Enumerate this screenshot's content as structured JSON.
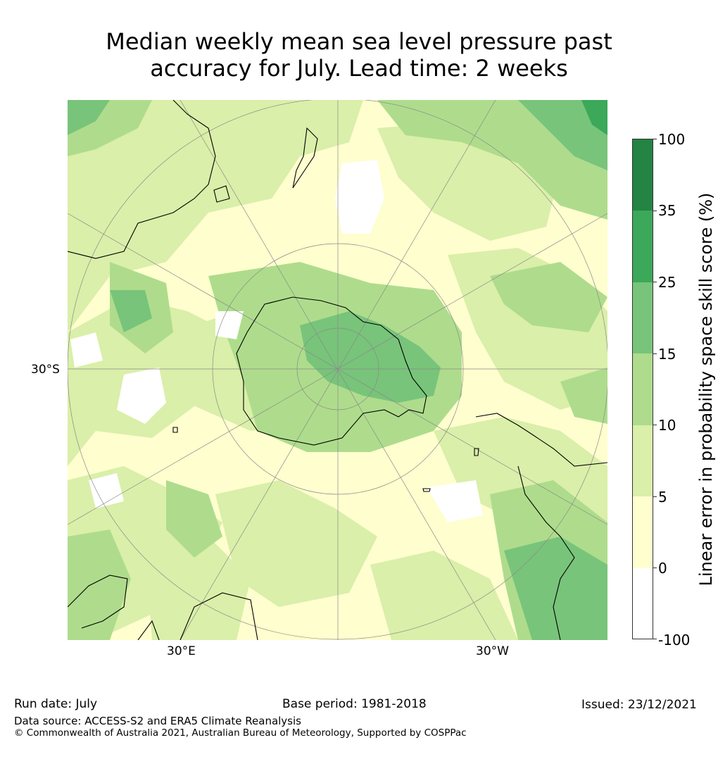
{
  "title_line1": "Median weekly mean sea level pressure past",
  "title_line2": "accuracy for July. Lead time: 2 weeks",
  "map": {
    "projection": "south-polar-stereographic",
    "lat_labels": [
      "30°S"
    ],
    "lon_labels": [
      "30°E",
      "30°W"
    ],
    "colors": {
      "ocean_base": "#fefecf",
      "band_0_5": "#fefecf",
      "band_5_10": "#daefa9",
      "band_10_15": "#aedc8c",
      "band_15_25": "#78c47a",
      "band_25_35": "#3ba85a",
      "band_35_100": "#238443",
      "below_zero": "#ffffff",
      "coast": "#000000",
      "grid": "#8a8a8a"
    }
  },
  "colorbar": {
    "label": "Linear error in probability space skill score (%)",
    "ticks": [
      "100",
      "35",
      "25",
      "15",
      "10",
      "5",
      "0",
      "-100"
    ],
    "segments": [
      {
        "range": "35–100",
        "color": "#238443"
      },
      {
        "range": "25–35",
        "color": "#3ba85a"
      },
      {
        "range": "15–25",
        "color": "#78c47a"
      },
      {
        "range": "10–15",
        "color": "#aedc8c"
      },
      {
        "range": "5–10",
        "color": "#daefa9"
      },
      {
        "range": "0–5",
        "color": "#fefecf"
      },
      {
        "range": "-100–0",
        "color": "#ffffff"
      }
    ]
  },
  "footer": {
    "run_date": "Run date: July",
    "base_period": "Base period: 1981-2018",
    "issued": "Issued: 23/12/2021",
    "data_source": "Data source: ACCESS-S2 and ERA5 Climate Reanalysis",
    "copyright": "© Commonwealth of Australia 2021, Australian Bureau of Meteorology, Supported by COSPPac"
  }
}
